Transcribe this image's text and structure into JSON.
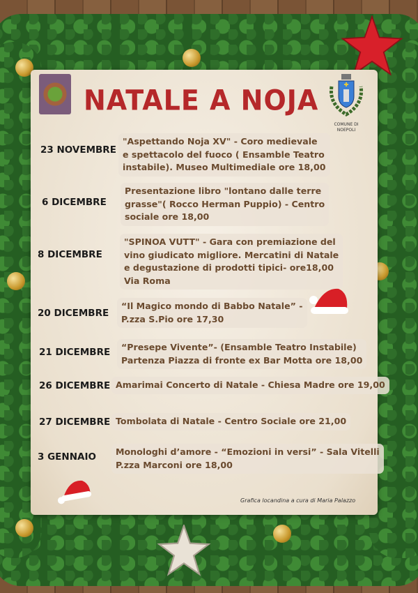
{
  "poster": {
    "title": "NATALE A NOJA",
    "crest_caption": [
      "COMUNE DI",
      "NOEPOLI"
    ],
    "credit": "Grafica locandina a cura  di Maria Palazzo",
    "colors": {
      "title": "#b5282a",
      "date": "#1a1a1a",
      "description": "#6a4a2e",
      "parchment": "#f2eadd",
      "background_wood": "#7a5436",
      "garland": "#255e22"
    },
    "events": [
      {
        "date": "23 NOVEMBRE",
        "lines": [
          "\"Aspettando Noja XV\" - Coro medievale",
          "e spettacolo del fuoco ( Ensamble Teatro",
          "instabile). Museo Multimediale ore 18,00"
        ]
      },
      {
        "date": "6 DICEMBRE",
        "lines": [
          "Presentazione libro \"lontano dalle terre",
          "grasse\"( Rocco Herman Puppio) - Centro",
          "sociale ore 18,00"
        ]
      },
      {
        "date": "8 DICEMBRE",
        "lines": [
          "\"SPINOA VUTT\" - Gara con premiazione del",
          "vino giudicato migliore. Mercatini di Natale",
          "e degustazione di prodotti tipici- ore18,00",
          " Via Roma"
        ]
      },
      {
        "date": "20 DICEMBRE",
        "lines": [
          "“Il Magico mondo di Babbo Natale” -",
          "P.zza S.Pio ore 17,30"
        ]
      },
      {
        "date": "21 DICEMBRE",
        "lines": [
          "“Presepe Vivente”- (Ensamble Teatro Instabile)",
          "Partenza Piazza di fronte ex Bar Motta ore 18,00"
        ]
      },
      {
        "date": "26 DICEMBRE",
        "lines": [
          "Amarimai Concerto di Natale - Chiesa Madre ore 19,00"
        ]
      },
      {
        "date": "27 DICEMBRE",
        "lines": [
          "Tombolata di Natale - Centro Sociale ore 21,00"
        ]
      },
      {
        "date": "3 GENNAIO",
        "lines": [
          "Monologhi d’amore - “Emozioni in versi” - Sala Vitelli",
          "P.zza Marconi ore 18,00"
        ]
      }
    ]
  }
}
